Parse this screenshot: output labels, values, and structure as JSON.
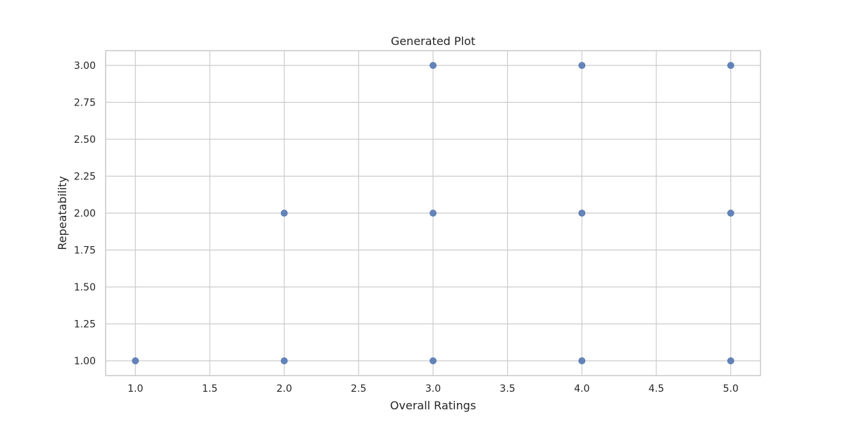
{
  "chart_data": {
    "type": "scatter",
    "title": "Generated Plot",
    "xlabel": "Overall Ratings",
    "ylabel": "Repeatability",
    "xlim": [
      0.8,
      5.2
    ],
    "ylim": [
      0.9,
      3.1
    ],
    "xticks": [
      1.0,
      1.5,
      2.0,
      2.5,
      3.0,
      3.5,
      4.0,
      4.5,
      5.0
    ],
    "yticks": [
      1.0,
      1.25,
      1.5,
      1.75,
      2.0,
      2.25,
      2.5,
      2.75,
      3.0
    ],
    "xtick_labels": [
      "1.0",
      "1.5",
      "2.0",
      "2.5",
      "3.0",
      "3.5",
      "4.0",
      "4.5",
      "5.0"
    ],
    "ytick_labels": [
      "1.00",
      "1.25",
      "1.50",
      "1.75",
      "2.00",
      "2.25",
      "2.50",
      "2.75",
      "3.00"
    ],
    "grid": true,
    "marker_color": "#4c72b0",
    "grid_color": "#cccccc",
    "series": [
      {
        "points": [
          {
            "x": 1,
            "y": 1
          },
          {
            "x": 2,
            "y": 1
          },
          {
            "x": 2,
            "y": 2
          },
          {
            "x": 3,
            "y": 1
          },
          {
            "x": 3,
            "y": 2
          },
          {
            "x": 3,
            "y": 3
          },
          {
            "x": 4,
            "y": 1
          },
          {
            "x": 4,
            "y": 2
          },
          {
            "x": 4,
            "y": 3
          },
          {
            "x": 5,
            "y": 1
          },
          {
            "x": 5,
            "y": 2
          },
          {
            "x": 5,
            "y": 3
          }
        ]
      }
    ]
  }
}
